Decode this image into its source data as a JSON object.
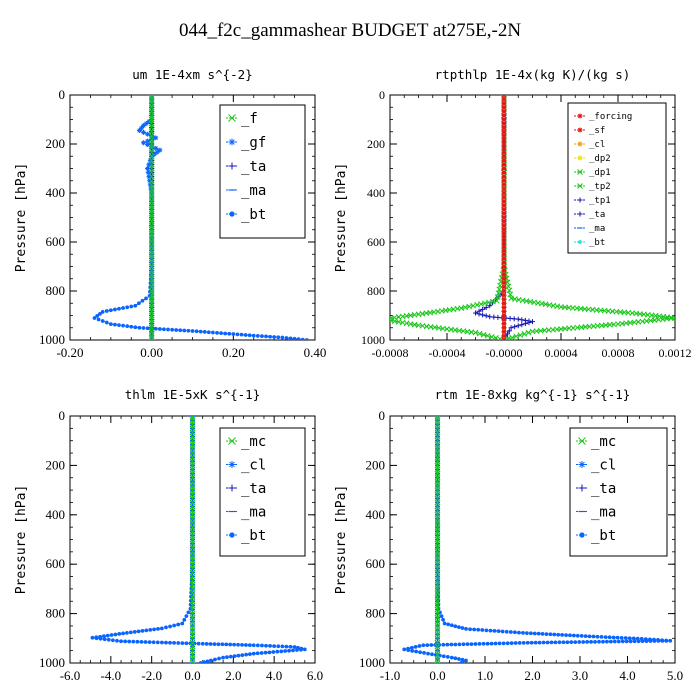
{
  "title": "044_f2c_gammashear  BUDGET at275E,-2N",
  "colors": {
    "green": "#19c819",
    "blue": "#0a64ff",
    "navy": "#1414b4",
    "red": "#e61414",
    "cyan": "#14e6e6",
    "orange": "#f0a000",
    "yellow": "#e6e600"
  },
  "chart_data": [
    {
      "type": "line",
      "title": "um  1E-4xm s^{-2}",
      "ylabel": "Pressure [hPa]",
      "xlim": [
        -0.2,
        0.4
      ],
      "ylim": [
        1000,
        0
      ],
      "xticks": [
        "-0.20",
        "0.00",
        "0.20",
        "0.40"
      ],
      "yticks": [
        "0",
        "200",
        "400",
        "600",
        "800",
        "1000"
      ],
      "legend": [
        "_f",
        "_gf",
        "_ta",
        "_ma",
        "_bt"
      ],
      "series": [
        {
          "name": "_f",
          "color": "#19c819",
          "marker": "x",
          "x": [
            0,
            0,
            0,
            0,
            0,
            0,
            0,
            0,
            0,
            0,
            0,
            0
          ],
          "y": [
            0,
            100,
            200,
            300,
            400,
            500,
            600,
            700,
            800,
            900,
            950,
            1000
          ]
        },
        {
          "name": "_gf",
          "color": "#0a64ff",
          "marker": "star",
          "x": [
            0,
            0,
            -0.02,
            -0.03,
            0.01,
            -0.02,
            0.02,
            0.0,
            -0.01,
            0,
            0,
            0,
            0,
            0
          ],
          "y": [
            0,
            100,
            125,
            145,
            175,
            195,
            225,
            250,
            300,
            400,
            600,
            800,
            850,
            1000
          ]
        },
        {
          "name": "_ta",
          "color": "#1414b4",
          "marker": "plus",
          "x": [
            0,
            0,
            0,
            0,
            0,
            0,
            0
          ],
          "y": [
            0,
            200,
            400,
            600,
            800,
            900,
            1000
          ]
        },
        {
          "name": "_ma",
          "color": "#0a64ff",
          "marker": "dash",
          "x": [
            0,
            0,
            0,
            0,
            0,
            0
          ],
          "y": [
            0,
            200,
            400,
            600,
            800,
            1000
          ]
        },
        {
          "name": "_bt",
          "color": "#0a64ff",
          "marker": "dot",
          "x": [
            0,
            0,
            0,
            0,
            0,
            0,
            0,
            0,
            -0.005,
            -0.04,
            -0.12,
            -0.14,
            -0.1,
            -0.03,
            0.09,
            0.17,
            0.25,
            0.32,
            0.38
          ],
          "y": [
            0,
            100,
            200,
            300,
            400,
            500,
            600,
            700,
            820,
            860,
            885,
            910,
            935,
            950,
            962,
            972,
            982,
            990,
            1000
          ]
        }
      ]
    },
    {
      "type": "line",
      "title": "rtpthlp  1E-4x(kg K)/(kg s)",
      "ylabel": "Pressure [hPa]",
      "xlim": [
        -0.0008,
        0.0012
      ],
      "ylim": [
        1000,
        0
      ],
      "xticks": [
        "-0.0008",
        "-0.0004",
        "-0.0000",
        "0.0004",
        "0.0008",
        "0.0012"
      ],
      "yticks": [
        "0",
        "200",
        "400",
        "600",
        "800",
        "1000"
      ],
      "legend": [
        "_forcing",
        "_sf",
        "_cl",
        "_dp2",
        "_dp1",
        "_tp2",
        "_tp1",
        "_ta",
        "_ma",
        "_bt"
      ],
      "series": [
        {
          "name": "_forcing",
          "color": "#e61414",
          "marker": "star",
          "x": [
            0,
            0,
            0,
            0,
            0,
            0,
            0,
            0,
            0,
            0,
            0
          ],
          "y": [
            0,
            100,
            200,
            300,
            400,
            500,
            600,
            700,
            800,
            900,
            1000
          ]
        },
        {
          "name": "_sf",
          "color": "#e61414",
          "marker": "star",
          "x": [
            0,
            0,
            0,
            0,
            0,
            0
          ],
          "y": [
            0,
            200,
            400,
            600,
            800,
            1000
          ]
        },
        {
          "name": "_cl",
          "color": "#f0a000",
          "marker": "star",
          "x": [
            0,
            0,
            0,
            0,
            0,
            0
          ],
          "y": [
            0,
            200,
            400,
            600,
            800,
            1000
          ]
        },
        {
          "name": "_dp2",
          "color": "#e6e600",
          "marker": "star",
          "x": [
            0,
            0,
            0,
            0,
            0,
            0
          ],
          "y": [
            0,
            200,
            400,
            600,
            800,
            1000
          ]
        },
        {
          "name": "_dp1",
          "color": "#19c819",
          "marker": "x",
          "x": [
            0,
            0,
            0,
            0,
            0,
            0,
            0,
            0,
            5e-05,
            0.0004,
            0.0009,
            0.0012,
            0.0008,
            0.0002,
            0
          ],
          "y": [
            0,
            100,
            200,
            300,
            400,
            500,
            600,
            700,
            830,
            865,
            890,
            910,
            935,
            965,
            1000
          ]
        },
        {
          "name": "_tp2",
          "color": "#19c819",
          "marker": "x",
          "x": [
            0,
            0,
            0,
            0,
            0,
            0,
            0,
            0,
            -5e-05,
            -0.0003,
            -0.0006,
            -0.00085,
            -0.0006,
            -0.0002,
            0
          ],
          "y": [
            0,
            100,
            200,
            300,
            400,
            500,
            600,
            700,
            840,
            870,
            895,
            915,
            940,
            970,
            1000
          ]
        },
        {
          "name": "_tp1",
          "color": "#1414b4",
          "marker": "plus",
          "x": [
            0,
            0,
            0,
            -0.0001,
            -0.0002,
            -0.0001,
            0.0001,
            0.0002,
            5e-05,
            0
          ],
          "y": [
            0,
            400,
            800,
            860,
            890,
            905,
            915,
            925,
            950,
            1000
          ]
        },
        {
          "name": "_ta",
          "color": "#1414b4",
          "marker": "plus",
          "x": [
            0,
            0,
            0,
            0,
            0,
            0
          ],
          "y": [
            0,
            200,
            400,
            600,
            800,
            1000
          ]
        },
        {
          "name": "_ma",
          "color": "#0a64ff",
          "marker": "dash",
          "x": [
            0,
            0,
            0,
            0,
            0,
            0
          ],
          "y": [
            0,
            200,
            400,
            600,
            800,
            1000
          ]
        },
        {
          "name": "_bt",
          "color": "#14e6e6",
          "marker": "dot",
          "x": [
            0,
            0,
            0,
            0,
            0,
            0
          ],
          "y": [
            0,
            200,
            400,
            600,
            800,
            1000
          ]
        }
      ]
    },
    {
      "type": "line",
      "title": "thlm  1E-5xK s^{-1}",
      "ylabel": "Pressure [hPa]",
      "xlim": [
        -6,
        6
      ],
      "ylim": [
        1000,
        0
      ],
      "xticks": [
        "-6.0",
        "-4.0",
        "-2.0",
        "0.0",
        "2.0",
        "4.0",
        "6.0"
      ],
      "yticks": [
        "0",
        "200",
        "400",
        "600",
        "800",
        "1000"
      ],
      "legend": [
        "_mc",
        "_cl",
        "_ta",
        "_ma",
        "_bt"
      ],
      "series": [
        {
          "name": "_mc",
          "color": "#19c819",
          "marker": "x",
          "x": [
            0,
            0,
            0,
            0,
            0,
            0,
            0,
            0,
            0,
            0,
            0,
            0
          ],
          "y": [
            0,
            100,
            200,
            300,
            400,
            500,
            600,
            700,
            800,
            900,
            950,
            1000
          ]
        },
        {
          "name": "_cl",
          "color": "#0a64ff",
          "marker": "star",
          "x": [
            0,
            0,
            0,
            0,
            0,
            0
          ],
          "y": [
            0,
            200,
            400,
            600,
            800,
            1000
          ]
        },
        {
          "name": "_ta",
          "color": "#1414b4",
          "marker": "plus",
          "x": [
            0,
            0,
            0,
            0,
            0,
            0
          ],
          "y": [
            0,
            200,
            400,
            600,
            800,
            1000
          ]
        },
        {
          "name": "_ma",
          "color": "#0a64ff",
          "marker": "dash",
          "x": [
            0,
            0,
            0,
            0,
            0,
            0
          ],
          "y": [
            0,
            200,
            400,
            600,
            800,
            1000
          ]
        },
        {
          "name": "_bt",
          "color": "#0a64ff",
          "marker": "dot",
          "x": [
            0,
            0,
            0,
            0,
            0,
            0,
            0,
            -0.1,
            -0.5,
            -1.5,
            -3.4,
            -4.9,
            -3.5,
            0.5,
            3.0,
            5.0,
            5.5,
            3.0,
            1.5,
            0.9,
            0.4
          ],
          "y": [
            0,
            100,
            200,
            300,
            400,
            500,
            600,
            780,
            840,
            860,
            880,
            898,
            912,
            922,
            928,
            935,
            945,
            962,
            978,
            990,
            1000
          ]
        }
      ]
    },
    {
      "type": "line",
      "title": "rtm  1E-8xkg kg^{-1} s^{-1}",
      "ylabel": "Pressure [hPa]",
      "xlim": [
        -1,
        5
      ],
      "ylim": [
        1000,
        0
      ],
      "xticks": [
        "-1.0",
        "0.0",
        "1.0",
        "2.0",
        "3.0",
        "4.0",
        "5.0"
      ],
      "yticks": [
        "0",
        "200",
        "400",
        "600",
        "800",
        "1000"
      ],
      "legend": [
        "_mc",
        "_cl",
        "_ta",
        "_ma",
        "_bt"
      ],
      "series": [
        {
          "name": "_mc",
          "color": "#19c819",
          "marker": "x",
          "x": [
            0,
            0,
            0,
            0,
            0,
            0,
            0,
            0,
            0,
            0,
            0,
            0
          ],
          "y": [
            0,
            100,
            200,
            300,
            400,
            500,
            600,
            700,
            800,
            900,
            950,
            1000
          ]
        },
        {
          "name": "_cl",
          "color": "#0a64ff",
          "marker": "star",
          "x": [
            0,
            0,
            0,
            0,
            0,
            0
          ],
          "y": [
            0,
            200,
            400,
            600,
            800,
            1000
          ]
        },
        {
          "name": "_ta",
          "color": "#1414b4",
          "marker": "plus",
          "x": [
            0,
            0,
            0,
            0,
            0,
            0
          ],
          "y": [
            0,
            200,
            400,
            600,
            800,
            1000
          ]
        },
        {
          "name": "_ma",
          "color": "#0a64ff",
          "marker": "dash",
          "x": [
            0,
            0,
            0,
            0,
            0,
            0
          ],
          "y": [
            0,
            200,
            400,
            600,
            800,
            1000
          ]
        },
        {
          "name": "_bt",
          "color": "#0a64ff",
          "marker": "dot",
          "x": [
            0,
            0,
            0,
            0,
            0,
            0,
            0,
            0.02,
            0.15,
            0.6,
            1.8,
            3.2,
            4.3,
            4.9,
            1.9,
            -0.3,
            -0.7,
            -0.2,
            0.3,
            0.6,
            0.5
          ],
          "y": [
            0,
            100,
            200,
            300,
            400,
            500,
            600,
            780,
            840,
            862,
            878,
            892,
            902,
            910,
            918,
            928,
            945,
            962,
            978,
            990,
            1000
          ]
        }
      ]
    }
  ]
}
